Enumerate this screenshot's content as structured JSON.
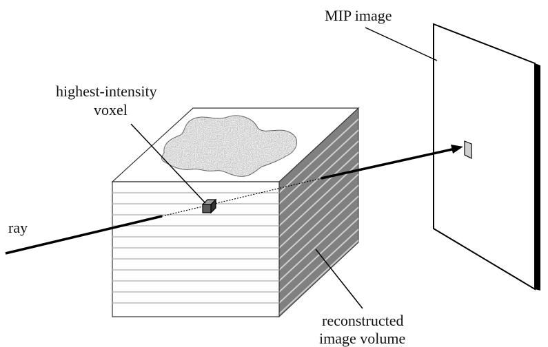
{
  "labels": {
    "mip_image": "MIP image",
    "voxel_line1": "highest-intensity",
    "voxel_line2": "voxel",
    "ray": "ray",
    "volume_line1": "reconstructed",
    "volume_line2": "image volume"
  },
  "colors": {
    "ink": "#111111",
    "side_face": "#808080",
    "slice_line": "#cfcfcf",
    "front_face": "#ffffff",
    "front_slice_line": "#b8b8b8",
    "top_face": "#ffffff",
    "blob_fill": "#e3e3e3",
    "voxel_front": "#5a5a5a",
    "voxel_top": "#9a9a9a",
    "projected_voxel": "#d0d0d0",
    "panel_edge": "#000000"
  }
}
